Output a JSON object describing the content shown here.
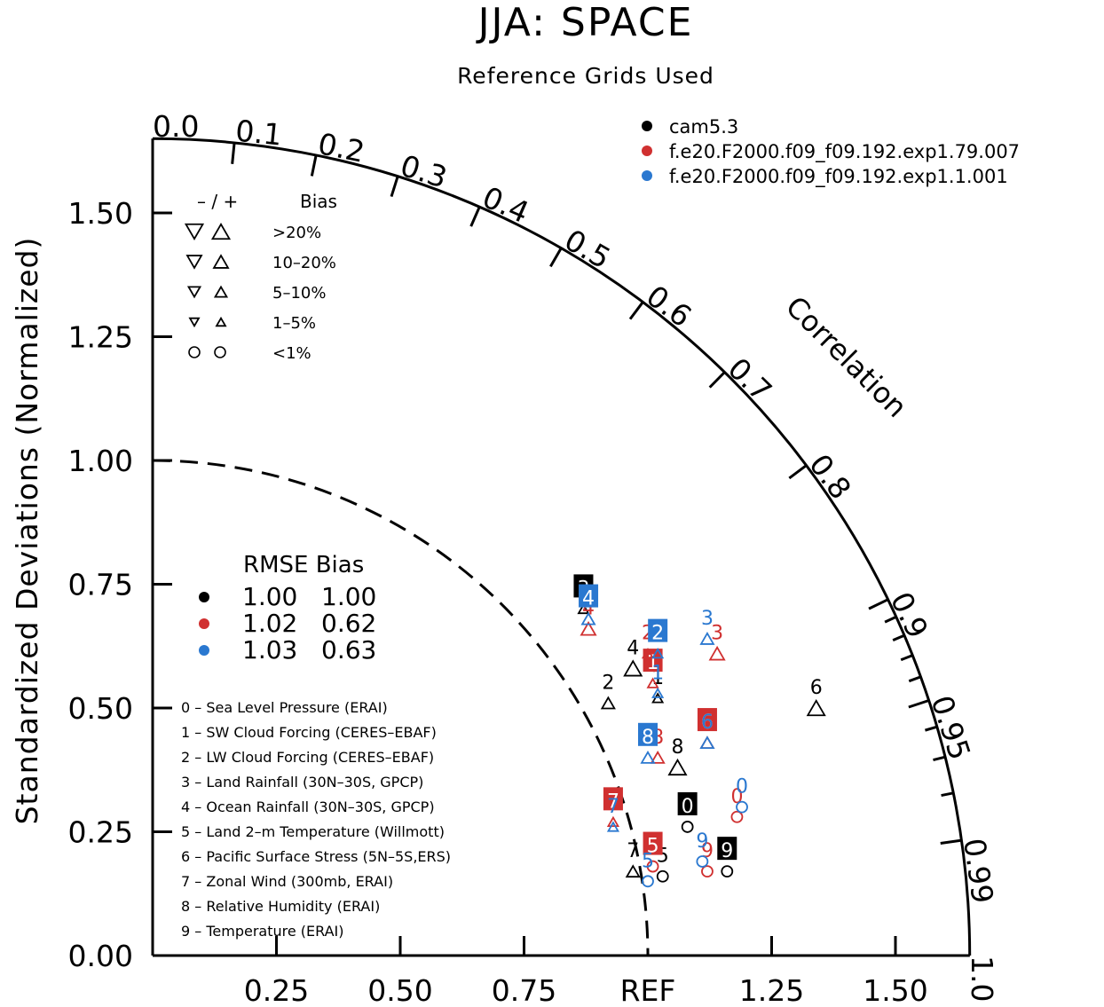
{
  "colors": {
    "black": "#000000",
    "red": "#d03030",
    "blue": "#2a78d0"
  },
  "chart_data": {
    "type": "scatter",
    "title": "JJA: SPACE",
    "subtitle": "Reference Grids Used",
    "ylabel": "Standardized Deviations (Normalized)",
    "corr_label": "Correlation",
    "ref_label": "REF",
    "y_ticks": [
      "0.00",
      "0.25",
      "0.50",
      "0.75",
      "1.00",
      "1.25",
      "1.50"
    ],
    "x_ticks": [
      "0.25",
      "0.50",
      "0.75",
      "1.25",
      "1.50"
    ],
    "corr_ticks": [
      "0.0",
      "0.1",
      "0.2",
      "0.3",
      "0.4",
      "0.5",
      "0.6",
      "0.7",
      "0.8",
      "0.9",
      "0.95",
      "0.99",
      "1.0"
    ],
    "legend_models": [
      {
        "name": "cam5.3",
        "color": "black"
      },
      {
        "name": "f.e20.F2000.f09_f09.192.exp1.79.007",
        "color": "red"
      },
      {
        "name": "f.e20.F2000.f09_f09.192.exp1.1.001",
        "color": "blue"
      }
    ],
    "bias_legend": {
      "header_sign": "– / +",
      "header_bias": "Bias",
      "rows": [
        {
          "label": ">20%",
          "size": "xl"
        },
        {
          "label": "10–20%",
          "size": "l"
        },
        {
          "label": "5–10%",
          "size": "m"
        },
        {
          "label": "1–5%",
          "size": "s"
        },
        {
          "label": "<1%",
          "size": "circle"
        }
      ]
    },
    "rmse_table": {
      "header": "RMSE Bias",
      "rows": [
        {
          "color": "black",
          "rmse": "1.00",
          "bias": "1.00"
        },
        {
          "color": "red",
          "rmse": "1.02",
          "bias": "0.62"
        },
        {
          "color": "blue",
          "rmse": "1.03",
          "bias": "0.63"
        }
      ]
    },
    "variables": [
      "0 – Sea Level Pressure (ERAI)",
      "1 – SW Cloud Forcing (CERES–EBAF)",
      "2 – LW Cloud Forcing (CERES–EBAF)",
      "3 – Land Rainfall (30N–30S, GPCP)",
      "4 – Ocean Rainfall (30N–30S, GPCP)",
      "5 – Land 2–m Temperature (Willmott)",
      "6 – Pacific Surface Stress (5N–5S,ERS)",
      "7 – Zonal Wind (300mb, ERAI)",
      "8 – Relative Humidity (ERAI)",
      "9 – Temperature (ERAI)"
    ],
    "series": [
      {
        "name": "cam5.3",
        "color": "black",
        "points": [
          {
            "id": "0",
            "x": 1.08,
            "y": 0.26,
            "marker": "circle",
            "boxed": true
          },
          {
            "id": "1",
            "x": 1.02,
            "y": 0.52,
            "marker": "up-s"
          },
          {
            "id": "2",
            "x": 0.92,
            "y": 0.51,
            "marker": "up-m"
          },
          {
            "id": "3",
            "x": 0.87,
            "y": 0.7,
            "marker": "up-s",
            "boxed": true
          },
          {
            "id": "4",
            "x": 0.97,
            "y": 0.58,
            "marker": "up-xl"
          },
          {
            "id": "5",
            "x": 1.03,
            "y": 0.16,
            "marker": "circle"
          },
          {
            "id": "6",
            "x": 1.34,
            "y": 0.5,
            "marker": "up-xl"
          },
          {
            "id": "7",
            "x": 0.97,
            "y": 0.17,
            "marker": "up-m"
          },
          {
            "id": "8",
            "x": 1.06,
            "y": 0.38,
            "marker": "up-xl"
          },
          {
            "id": "9",
            "x": 1.16,
            "y": 0.17,
            "marker": "circle",
            "boxed": true
          }
        ]
      },
      {
        "name": "f.e20.F2000.f09_f09.192.exp1.79.007",
        "color": "red",
        "points": [
          {
            "id": "0",
            "x": 1.18,
            "y": 0.28,
            "marker": "circle"
          },
          {
            "id": "1",
            "x": 1.01,
            "y": 0.55,
            "marker": "up-s",
            "boxed": true
          },
          {
            "id": "2",
            "x": 1.0,
            "y": 0.61,
            "marker": "up-s"
          },
          {
            "id": "3",
            "x": 1.14,
            "y": 0.61,
            "marker": "up-l"
          },
          {
            "id": "4",
            "x": 0.88,
            "y": 0.66,
            "marker": "up-l"
          },
          {
            "id": "5",
            "x": 1.01,
            "y": 0.18,
            "marker": "circle",
            "boxed": true
          },
          {
            "id": "6",
            "x": 1.12,
            "y": 0.43,
            "marker": "up-m",
            "boxed": true
          },
          {
            "id": "7",
            "x": 0.93,
            "y": 0.27,
            "marker": "up-s",
            "boxed": true
          },
          {
            "id": "8",
            "x": 1.02,
            "y": 0.4,
            "marker": "up-m"
          },
          {
            "id": "9",
            "x": 1.12,
            "y": 0.17,
            "marker": "circle"
          }
        ]
      },
      {
        "name": "f.e20.F2000.f09_f09.192.exp1.1.001",
        "color": "blue",
        "points": [
          {
            "id": "0",
            "x": 1.19,
            "y": 0.3,
            "marker": "circle"
          },
          {
            "id": "1",
            "x": 1.02,
            "y": 0.53,
            "marker": "up-s"
          },
          {
            "id": "2",
            "x": 1.02,
            "y": 0.61,
            "marker": "up-s",
            "boxed": true
          },
          {
            "id": "3",
            "x": 1.12,
            "y": 0.64,
            "marker": "up-m"
          },
          {
            "id": "4",
            "x": 0.88,
            "y": 0.68,
            "marker": "up-m",
            "boxed": true
          },
          {
            "id": "5",
            "x": 1.0,
            "y": 0.15,
            "marker": "circle"
          },
          {
            "id": "6",
            "x": 1.12,
            "y": 0.43,
            "marker": "up-m"
          },
          {
            "id": "7",
            "x": 0.93,
            "y": 0.26,
            "marker": "up-s"
          },
          {
            "id": "8",
            "x": 1.0,
            "y": 0.4,
            "marker": "up-m",
            "boxed": true
          },
          {
            "id": "9",
            "x": 1.11,
            "y": 0.19,
            "marker": "circle"
          }
        ]
      }
    ]
  }
}
